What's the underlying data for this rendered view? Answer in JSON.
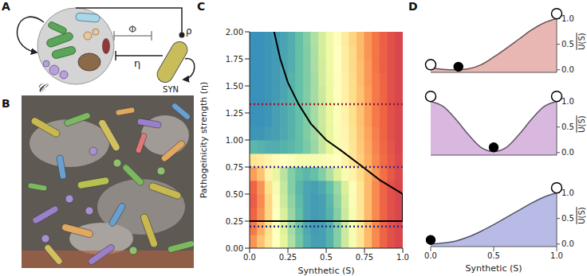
{
  "panel_labels": [
    "A",
    "B",
    "C",
    "D"
  ],
  "diagram": {
    "community_label": "𝒞",
    "interaction_label": "Φ",
    "pathogenicity_label": "η",
    "rate_label": "ρ",
    "synthetic_label": "SYN"
  },
  "chart_data": [
    {
      "type": "heatmap",
      "x_label": "Synthetic (S)",
      "y_label": "Pathogeinicity strength (η)",
      "xlim": [
        0,
        1
      ],
      "ylim": [
        0,
        2
      ],
      "xticks": [
        {
          "value": 0,
          "label": "0.0"
        },
        0.25,
        0.5,
        0.75,
        {
          "value": 1,
          "label": "1.0"
        }
      ],
      "yticks": [
        {
          "value": 0,
          "label": "0.00"
        },
        0.25,
        {
          "value": 0.5,
          "label": "0.50"
        },
        0.75,
        {
          "value": 1,
          "label": "1.00"
        },
        1.25,
        {
          "value": 1.5,
          "label": "1.50"
        },
        1.75,
        {
          "value": 2,
          "label": "2.00"
        }
      ],
      "cell_x_edges": [
        0,
        0.05,
        0.1,
        0.15,
        0.2,
        0.25,
        0.3,
        0.35,
        0.4,
        0.45,
        0.5,
        0.55,
        0.6,
        0.65,
        0.7,
        0.75,
        0.8,
        0.85,
        0.9,
        0.95,
        1.0
      ],
      "cell_y_edges": [
        0,
        0.125,
        0.25,
        0.375,
        0.5,
        0.625,
        0.75,
        0.875,
        1,
        1.125,
        1.25,
        1.375,
        1.5,
        1.625,
        1.75,
        1.875,
        2
      ],
      "cells": [
        [
          0.8,
          0.7,
          0.6,
          0.5,
          0.38,
          0.26,
          0.15,
          0.08,
          0.05,
          0.05,
          0.09,
          0.18,
          0.32,
          0.46,
          0.6,
          0.72,
          0.82,
          0.9,
          0.95,
          0.98
        ],
        [
          0.85,
          0.75,
          0.62,
          0.5,
          0.36,
          0.24,
          0.14,
          0.07,
          0.04,
          0.05,
          0.09,
          0.18,
          0.32,
          0.46,
          0.6,
          0.72,
          0.82,
          0.9,
          0.95,
          0.98
        ],
        [
          0.9,
          0.8,
          0.65,
          0.5,
          0.35,
          0.22,
          0.12,
          0.06,
          0.04,
          0.05,
          0.09,
          0.18,
          0.32,
          0.46,
          0.6,
          0.72,
          0.82,
          0.9,
          0.95,
          0.98
        ],
        [
          0.92,
          0.82,
          0.65,
          0.48,
          0.32,
          0.2,
          0.11,
          0.06,
          0.04,
          0.05,
          0.1,
          0.2,
          0.33,
          0.47,
          0.6,
          0.72,
          0.82,
          0.9,
          0.95,
          0.98
        ],
        [
          0.9,
          0.8,
          0.62,
          0.45,
          0.3,
          0.18,
          0.1,
          0.06,
          0.05,
          0.07,
          0.12,
          0.22,
          0.35,
          0.48,
          0.6,
          0.72,
          0.82,
          0.9,
          0.95,
          0.98
        ],
        [
          0.78,
          0.7,
          0.55,
          0.4,
          0.28,
          0.18,
          0.12,
          0.1,
          0.12,
          0.18,
          0.26,
          0.36,
          0.46,
          0.55,
          0.63,
          0.72,
          0.8,
          0.87,
          0.93,
          0.97
        ],
        [
          0.6,
          0.58,
          0.55,
          0.52,
          0.5,
          0.48,
          0.45,
          0.45,
          0.45,
          0.46,
          0.48,
          0.5,
          0.55,
          0.6,
          0.67,
          0.75,
          0.82,
          0.88,
          0.93,
          0.97
        ],
        [
          0.1,
          0.09,
          0.08,
          0.08,
          0.09,
          0.1,
          0.12,
          0.16,
          0.22,
          0.3,
          0.38,
          0.46,
          0.53,
          0.6,
          0.68,
          0.76,
          0.83,
          0.89,
          0.94,
          0.98
        ],
        [
          0.03,
          0.03,
          0.04,
          0.05,
          0.07,
          0.09,
          0.12,
          0.17,
          0.23,
          0.31,
          0.39,
          0.47,
          0.54,
          0.61,
          0.69,
          0.77,
          0.84,
          0.9,
          0.95,
          0.98
        ],
        [
          0.02,
          0.02,
          0.03,
          0.05,
          0.07,
          0.09,
          0.12,
          0.17,
          0.24,
          0.32,
          0.4,
          0.48,
          0.55,
          0.62,
          0.7,
          0.78,
          0.85,
          0.9,
          0.95,
          0.98
        ],
        [
          0.02,
          0.02,
          0.03,
          0.05,
          0.07,
          0.09,
          0.12,
          0.17,
          0.24,
          0.32,
          0.4,
          0.48,
          0.55,
          0.62,
          0.7,
          0.78,
          0.85,
          0.9,
          0.95,
          0.98
        ],
        [
          0.02,
          0.02,
          0.03,
          0.04,
          0.06,
          0.09,
          0.12,
          0.17,
          0.24,
          0.32,
          0.41,
          0.49,
          0.56,
          0.63,
          0.7,
          0.78,
          0.85,
          0.9,
          0.95,
          0.98
        ],
        [
          0.02,
          0.02,
          0.03,
          0.04,
          0.06,
          0.09,
          0.12,
          0.17,
          0.24,
          0.33,
          0.41,
          0.49,
          0.56,
          0.63,
          0.71,
          0.79,
          0.85,
          0.9,
          0.95,
          0.98
        ],
        [
          0.02,
          0.02,
          0.03,
          0.04,
          0.06,
          0.08,
          0.12,
          0.17,
          0.25,
          0.33,
          0.42,
          0.5,
          0.57,
          0.64,
          0.71,
          0.79,
          0.86,
          0.91,
          0.95,
          0.98
        ],
        [
          0.02,
          0.02,
          0.03,
          0.04,
          0.06,
          0.08,
          0.12,
          0.17,
          0.25,
          0.34,
          0.42,
          0.5,
          0.57,
          0.64,
          0.72,
          0.8,
          0.86,
          0.91,
          0.95,
          0.98
        ],
        [
          0.02,
          0.02,
          0.03,
          0.04,
          0.06,
          0.08,
          0.12,
          0.18,
          0.26,
          0.34,
          0.43,
          0.51,
          0.58,
          0.65,
          0.72,
          0.8,
          0.86,
          0.91,
          0.95,
          0.98
        ]
      ],
      "series": [
        {
          "type": "line",
          "color": "#000000",
          "x": [
            0.16,
            0.2,
            0.25,
            0.32,
            0.4,
            0.5,
            0.6,
            0.74,
            0.85,
            1.0,
            1.0,
            0.0
          ],
          "values": [
            2.0,
            1.75,
            1.53,
            1.33,
            1.15,
            1.0,
            0.9,
            0.75,
            0.63,
            0.5,
            0.25,
            0.25
          ]
        }
      ],
      "reference_lines": [
        {
          "y": 1.33,
          "color": "#8e1b2e",
          "line_style": "dotted"
        },
        {
          "y": 0.75,
          "color": "#3b2a8c",
          "line_style": "dotted"
        },
        {
          "y": 0.2,
          "color": "#26307f",
          "line_style": "dotted"
        }
      ]
    },
    {
      "type": "area",
      "y_label": "U(S)",
      "xlim": [
        0,
        1
      ],
      "ylim": [
        -0.05,
        1.18
      ],
      "yticks": [
        {
          "value": 0,
          "label": "0.0"
        },
        0.5,
        {
          "value": 1,
          "label": "1.0"
        }
      ],
      "tick_labels": "y",
      "color": "#e8b7b3",
      "x": [
        0,
        0.1,
        0.2,
        0.3,
        0.4,
        0.5,
        0.6,
        0.7,
        0.8,
        0.9,
        1.0
      ],
      "values": [
        0.04,
        0.01,
        0.0,
        0.02,
        0.1,
        0.25,
        0.42,
        0.6,
        0.78,
        0.92,
        1.0
      ],
      "points": [
        {
          "x": 0,
          "y": 0.1,
          "marker": "open"
        },
        {
          "x": 0.22,
          "y": 0.06,
          "marker": "filled"
        },
        {
          "x": 1,
          "y": 1.1,
          "marker": "open"
        }
      ]
    },
    {
      "type": "area",
      "y_label": "U(S)",
      "xlim": [
        0,
        1
      ],
      "ylim": [
        -0.05,
        1.18
      ],
      "yticks": [
        {
          "value": 0,
          "label": "0.0"
        },
        0.5,
        {
          "value": 1,
          "label": "1.0"
        }
      ],
      "tick_labels": "y",
      "color": "#d9b8e0",
      "x": [
        0,
        0.1,
        0.2,
        0.3,
        0.4,
        0.5,
        0.6,
        0.7,
        0.8,
        0.9,
        1.0
      ],
      "values": [
        1.0,
        0.9,
        0.65,
        0.35,
        0.1,
        0.02,
        0.1,
        0.35,
        0.65,
        0.9,
        1.0
      ],
      "points": [
        {
          "x": 0,
          "y": 1.1,
          "marker": "open"
        },
        {
          "x": 0.5,
          "y": 0.1,
          "marker": "filled"
        },
        {
          "x": 1,
          "y": 1.1,
          "marker": "open"
        }
      ]
    },
    {
      "type": "area",
      "x_label": "Synthetic (S)",
      "y_label": "U(S)",
      "xlim": [
        0,
        1
      ],
      "ylim": [
        -0.05,
        1.18
      ],
      "xticks": [
        {
          "value": 0,
          "label": "0.0"
        },
        0.5,
        {
          "value": 1,
          "label": "1.0"
        }
      ],
      "yticks": [
        {
          "value": 0,
          "label": "0.0"
        },
        0.5,
        {
          "value": 1,
          "label": "1.0"
        }
      ],
      "color": "#b7bbe6",
      "x": [
        0,
        0.1,
        0.2,
        0.3,
        0.4,
        0.5,
        0.6,
        0.7,
        0.8,
        0.9,
        1.0
      ],
      "values": [
        0.0,
        0.02,
        0.06,
        0.14,
        0.25,
        0.38,
        0.52,
        0.66,
        0.8,
        0.92,
        1.0
      ],
      "points": [
        {
          "x": 0,
          "y": 0.08,
          "marker": "filled"
        },
        {
          "x": 1,
          "y": 1.1,
          "marker": "open"
        }
      ]
    }
  ]
}
